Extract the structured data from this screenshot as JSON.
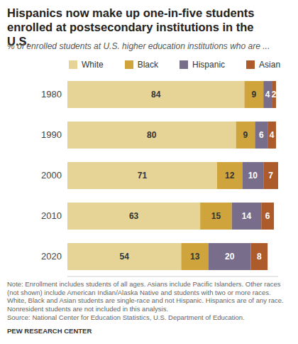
{
  "chart_data": {
    "type": "bar",
    "title": "Hispanics now make up one-in-five students enrolled at postsecondary institutions in the U.S.",
    "subtitle": "% of enrolled students at U.S. higher education institutions who are ...",
    "orientation": "horizontal",
    "stacked": true,
    "data_labels": true,
    "tick_labels": "y",
    "grid": false,
    "legend": "top",
    "categories": [
      "1980",
      "1990",
      "2000",
      "2010",
      "2020"
    ],
    "series": [
      {
        "name": "White",
        "color": "#e6d396",
        "values": [
          84,
          80,
          71,
          63,
          54
        ]
      },
      {
        "name": "Black",
        "color": "#cfa43c",
        "values": [
          9,
          9,
          12,
          15,
          13
        ]
      },
      {
        "name": "Hispanic",
        "color": "#786e8b",
        "values": [
          4,
          6,
          10,
          14,
          20
        ]
      },
      {
        "name": "Asian",
        "color": "#ad5b2b",
        "values": [
          2,
          4,
          7,
          6,
          8
        ]
      }
    ],
    "xlim": [
      0,
      100
    ],
    "note": "Note: Enrollment includes students of all ages. Asians include Pacific Islanders. Other races (not shown) include American Indian/Alaska Native and students with two or more races. White, Black and Asian students are single-race and not Hispanic. Hispanics are of any race. Nonresident students are not included in this analysis.",
    "source": "Source: National Center for Education Statistics, U.S. Department of Education.",
    "credit": "PEW RESEARCH CENTER"
  }
}
